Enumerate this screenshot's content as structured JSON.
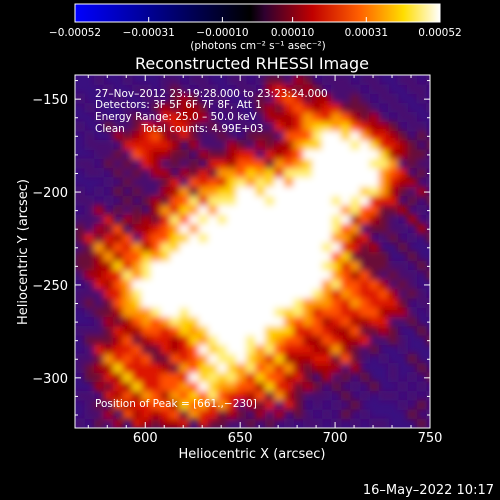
{
  "chart_data": {
    "type": "heatmap",
    "title": "Reconstructed RHESSI Image",
    "xlabel": "Heliocentric X (arcsec)",
    "ylabel": "Heliocentric Y (arcsec)",
    "xlim": [
      563,
      750
    ],
    "ylim": [
      -327,
      -137
    ],
    "x_ticks": [
      600,
      650,
      700,
      750
    ],
    "x_tick_labels": [
      "600",
      "650",
      "700",
      "750"
    ],
    "y_ticks": [
      -150,
      -200,
      -250,
      -300
    ],
    "y_tick_labels": [
      "−150",
      "−200",
      "−250",
      "−300"
    ],
    "colorbar": {
      "min": -0.00052,
      "max": 0.00052,
      "ticks": [
        -0.00052,
        -0.00031,
        -0.0001,
        0.0001,
        0.00031,
        0.00052
      ],
      "tick_labels": [
        "−0.00052",
        "−0.00031",
        "−0.00010",
        "0.00010",
        "0.00031",
        "0.00052"
      ],
      "units": "(photons cm⁻² s⁻¹ asec⁻²)",
      "colormap": [
        "#0000ff",
        "#000000",
        "#ff0000",
        "#ffff00",
        "#ffffff"
      ]
    },
    "annotations": [
      "27–Nov–2012 23:19:28.000 to 23:23:24.000",
      "Detectors: 3F 5F 6F 7F 8F, Att 1",
      "Energy Range: 25.0 – 50.0 keV",
      "Clean     Total counts: 4.99E+03"
    ],
    "peak_label": "Position of Peak = [661.,−230]",
    "peak": [
      661,
      -230
    ],
    "grid": false
  },
  "footer": {
    "timestamp": "16–May–2022 10:17"
  },
  "colors": {
    "background": "#000000",
    "foreground": "#ffffff",
    "map_background": "#3a1080"
  }
}
